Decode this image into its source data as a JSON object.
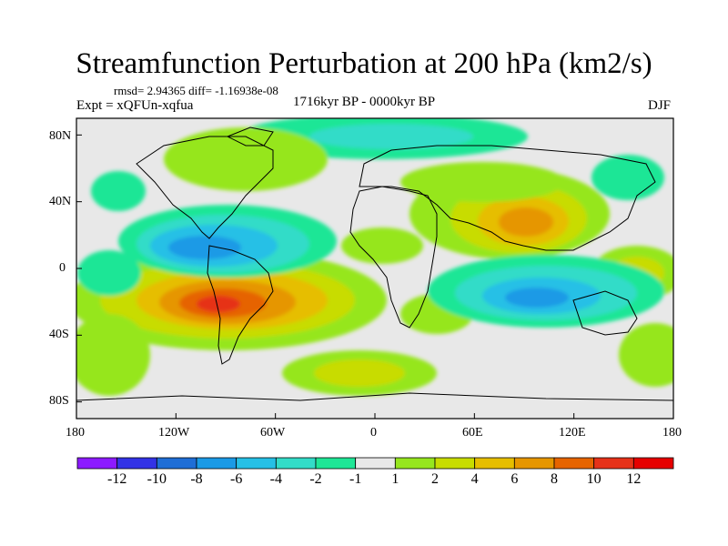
{
  "title": "Streamfunction Perturbation at 200 hPa (km2/s)",
  "stats": "rmsd= 2.94365  diff= -1.16938e-08",
  "experiment": "Expt = xQFUn-xqfua",
  "period": "1716kyr BP - 0000kyr BP",
  "season": "DJF",
  "lat_labels": [
    "80N",
    "40N",
    "0",
    "40S",
    "80S"
  ],
  "lon_labels": [
    "180",
    "120W",
    "60W",
    "0",
    "60E",
    "120E",
    "180"
  ],
  "colorbar": {
    "labels": [
      "-12",
      "-10",
      "-8",
      "-6",
      "-4",
      "-2",
      "-1",
      "1",
      "2",
      "4",
      "6",
      "8",
      "10",
      "12"
    ],
    "colors": [
      "#8c1aff",
      "#3333e6",
      "#1f6ed6",
      "#1a9ae6",
      "#26c0e6",
      "#33dcc8",
      "#1ee696",
      "#e8e8e8",
      "#96e61e",
      "#c8dc00",
      "#e6be00",
      "#e69600",
      "#e66400",
      "#e63219",
      "#e60000"
    ]
  },
  "chart_data": {
    "type": "filled-contour-map",
    "title": "Streamfunction Perturbation at 200 hPa (km2/s)",
    "units": "km2/s",
    "levels": [
      -12,
      -10,
      -8,
      -6,
      -4,
      -2,
      -1,
      1,
      2,
      4,
      6,
      8,
      10,
      12
    ],
    "lon_range": [
      -180,
      180
    ],
    "lat_range": [
      -90,
      90
    ],
    "features": [
      {
        "name": "south-america-max",
        "lon": -85,
        "lat": -22,
        "value": 12
      },
      {
        "name": "asia-max",
        "lon": 90,
        "lat": 28,
        "value": 9
      },
      {
        "name": "n-atlantic-min",
        "lon": -90,
        "lat": 15,
        "value": -7
      },
      {
        "name": "indian-ocean-min",
        "lon": 80,
        "lat": -25,
        "value": -6
      },
      {
        "name": "w-pacific-min",
        "lon": 150,
        "lat": -25,
        "value": -5
      },
      {
        "name": "arctic-min",
        "lon": -10,
        "lat": 78,
        "value": -3
      },
      {
        "name": "s-ocean-max",
        "lon": 10,
        "lat": -55,
        "value": 4
      }
    ]
  }
}
